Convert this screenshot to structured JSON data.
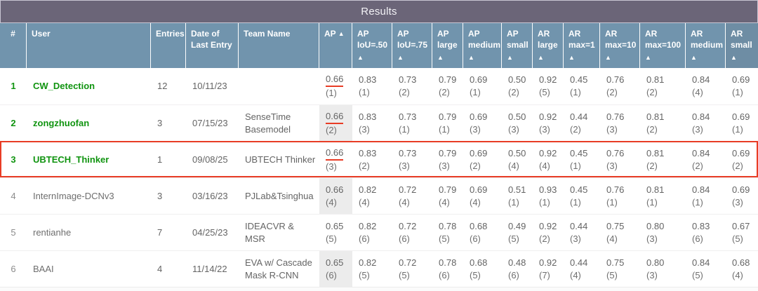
{
  "title": "Results",
  "colors": {
    "title_bar_bg": "#6b6578",
    "header_bg": "#7194ad",
    "header_last_bg": "#6e8da4",
    "top3_green": "#109410",
    "highlight_red": "#e83c25",
    "sorted_cell_shade": "#ececec"
  },
  "columns": [
    {
      "key": "rank",
      "lines": [
        "#"
      ],
      "sort": "none"
    },
    {
      "key": "user",
      "lines": [
        "User"
      ],
      "sort": "none"
    },
    {
      "key": "entries",
      "lines": [
        "Entries"
      ],
      "sort": "none"
    },
    {
      "key": "date",
      "lines": [
        "Date of",
        "Last Entry"
      ],
      "sort": "none"
    },
    {
      "key": "team",
      "lines": [
        "Team Name"
      ],
      "sort": "none"
    },
    {
      "key": "ap",
      "lines": [
        "AP"
      ],
      "sort": "inline"
    },
    {
      "key": "ap50",
      "lines": [
        "AP",
        "IoU=.50"
      ],
      "sort": "below"
    },
    {
      "key": "ap75",
      "lines": [
        "AP",
        "IoU=.75"
      ],
      "sort": "below"
    },
    {
      "key": "apl",
      "lines": [
        "AP",
        "large"
      ],
      "sort": "below"
    },
    {
      "key": "apm",
      "lines": [
        "AP",
        "medium"
      ],
      "sort": "below"
    },
    {
      "key": "aps",
      "lines": [
        "AP",
        "small"
      ],
      "sort": "below"
    },
    {
      "key": "arl",
      "lines": [
        "AR",
        "large"
      ],
      "sort": "below"
    },
    {
      "key": "armax1",
      "lines": [
        "AR",
        "max=1"
      ],
      "sort": "below"
    },
    {
      "key": "armax10",
      "lines": [
        "AR",
        "max=10"
      ],
      "sort": "below"
    },
    {
      "key": "armax100",
      "lines": [
        "AR",
        "max=100"
      ],
      "sort": "below"
    },
    {
      "key": "arm",
      "lines": [
        "AR",
        "medium"
      ],
      "sort": "below"
    },
    {
      "key": "ars",
      "lines": [
        "AR",
        "small"
      ],
      "sort": "below"
    }
  ],
  "sort_icon": "▲",
  "rows": [
    {
      "rank": "1",
      "top3": true,
      "highlighted": false,
      "user": "CW_Detection",
      "entries": "12",
      "last_entry_date": "10/11/23",
      "team_lines": [],
      "metrics": [
        {
          "value": "0.66",
          "rank": "(1)"
        },
        {
          "value": "0.83",
          "rank": "(1)"
        },
        {
          "value": "0.73",
          "rank": "(2)"
        },
        {
          "value": "0.79",
          "rank": "(2)"
        },
        {
          "value": "0.69",
          "rank": "(1)"
        },
        {
          "value": "0.50",
          "rank": "(2)"
        },
        {
          "value": "0.92",
          "rank": "(5)"
        },
        {
          "value": "0.45",
          "rank": "(1)"
        },
        {
          "value": "0.76",
          "rank": "(2)"
        },
        {
          "value": "0.81",
          "rank": "(2)"
        },
        {
          "value": "0.84",
          "rank": "(4)"
        },
        {
          "value": "0.69",
          "rank": "(1)"
        }
      ]
    },
    {
      "rank": "2",
      "top3": true,
      "highlighted": false,
      "user": "zongzhuofan",
      "entries": "3",
      "last_entry_date": "07/15/23",
      "team_lines": [
        "SenseTime",
        "Basemodel"
      ],
      "metrics": [
        {
          "value": "0.66",
          "rank": "(2)"
        },
        {
          "value": "0.83",
          "rank": "(3)"
        },
        {
          "value": "0.73",
          "rank": "(1)"
        },
        {
          "value": "0.79",
          "rank": "(1)"
        },
        {
          "value": "0.69",
          "rank": "(3)"
        },
        {
          "value": "0.50",
          "rank": "(3)"
        },
        {
          "value": "0.92",
          "rank": "(3)"
        },
        {
          "value": "0.44",
          "rank": "(2)"
        },
        {
          "value": "0.76",
          "rank": "(3)"
        },
        {
          "value": "0.81",
          "rank": "(2)"
        },
        {
          "value": "0.84",
          "rank": "(3)"
        },
        {
          "value": "0.69",
          "rank": "(1)"
        }
      ]
    },
    {
      "rank": "3",
      "top3": true,
      "highlighted": true,
      "user": "UBTECH_Thinker",
      "entries": "1",
      "last_entry_date": "09/08/25",
      "team_lines": [
        "UBTECH Thinker"
      ],
      "metrics": [
        {
          "value": "0.66",
          "rank": "(3)"
        },
        {
          "value": "0.83",
          "rank": "(2)"
        },
        {
          "value": "0.73",
          "rank": "(3)"
        },
        {
          "value": "0.79",
          "rank": "(3)"
        },
        {
          "value": "0.69",
          "rank": "(2)"
        },
        {
          "value": "0.50",
          "rank": "(4)"
        },
        {
          "value": "0.92",
          "rank": "(4)"
        },
        {
          "value": "0.45",
          "rank": "(1)"
        },
        {
          "value": "0.76",
          "rank": "(3)"
        },
        {
          "value": "0.81",
          "rank": "(2)"
        },
        {
          "value": "0.84",
          "rank": "(2)"
        },
        {
          "value": "0.69",
          "rank": "(2)"
        }
      ]
    },
    {
      "rank": "4",
      "top3": false,
      "highlighted": false,
      "user": "InternImage-DCNv3",
      "entries": "3",
      "last_entry_date": "03/16/23",
      "team_lines": [
        "PJLab&Tsinghua"
      ],
      "metrics": [
        {
          "value": "0.66",
          "rank": "(4)"
        },
        {
          "value": "0.82",
          "rank": "(4)"
        },
        {
          "value": "0.72",
          "rank": "(4)"
        },
        {
          "value": "0.79",
          "rank": "(4)"
        },
        {
          "value": "0.69",
          "rank": "(4)"
        },
        {
          "value": "0.51",
          "rank": "(1)"
        },
        {
          "value": "0.93",
          "rank": "(1)"
        },
        {
          "value": "0.45",
          "rank": "(1)"
        },
        {
          "value": "0.76",
          "rank": "(1)"
        },
        {
          "value": "0.81",
          "rank": "(1)"
        },
        {
          "value": "0.84",
          "rank": "(1)"
        },
        {
          "value": "0.69",
          "rank": "(3)"
        }
      ]
    },
    {
      "rank": "5",
      "top3": false,
      "highlighted": false,
      "user": "rentianhe",
      "entries": "7",
      "last_entry_date": "04/25/23",
      "team_lines": [
        "IDEACVR &",
        "MSR"
      ],
      "metrics": [
        {
          "value": "0.65",
          "rank": "(5)"
        },
        {
          "value": "0.82",
          "rank": "(6)"
        },
        {
          "value": "0.72",
          "rank": "(6)"
        },
        {
          "value": "0.78",
          "rank": "(5)"
        },
        {
          "value": "0.68",
          "rank": "(6)"
        },
        {
          "value": "0.49",
          "rank": "(5)"
        },
        {
          "value": "0.92",
          "rank": "(2)"
        },
        {
          "value": "0.44",
          "rank": "(3)"
        },
        {
          "value": "0.75",
          "rank": "(4)"
        },
        {
          "value": "0.80",
          "rank": "(3)"
        },
        {
          "value": "0.83",
          "rank": "(6)"
        },
        {
          "value": "0.67",
          "rank": "(5)"
        }
      ]
    },
    {
      "rank": "6",
      "top3": false,
      "highlighted": false,
      "user": "BAAI",
      "entries": "4",
      "last_entry_date": "11/14/22",
      "team_lines": [
        "EVA w/ Cascade",
        "Mask R-CNN"
      ],
      "metrics": [
        {
          "value": "0.65",
          "rank": "(6)"
        },
        {
          "value": "0.82",
          "rank": "(5)"
        },
        {
          "value": "0.72",
          "rank": "(5)"
        },
        {
          "value": "0.78",
          "rank": "(6)"
        },
        {
          "value": "0.68",
          "rank": "(5)"
        },
        {
          "value": "0.48",
          "rank": "(6)"
        },
        {
          "value": "0.92",
          "rank": "(7)"
        },
        {
          "value": "0.44",
          "rank": "(4)"
        },
        {
          "value": "0.75",
          "rank": "(5)"
        },
        {
          "value": "0.80",
          "rank": "(3)"
        },
        {
          "value": "0.84",
          "rank": "(5)"
        },
        {
          "value": "0.68",
          "rank": "(4)"
        }
      ]
    }
  ]
}
